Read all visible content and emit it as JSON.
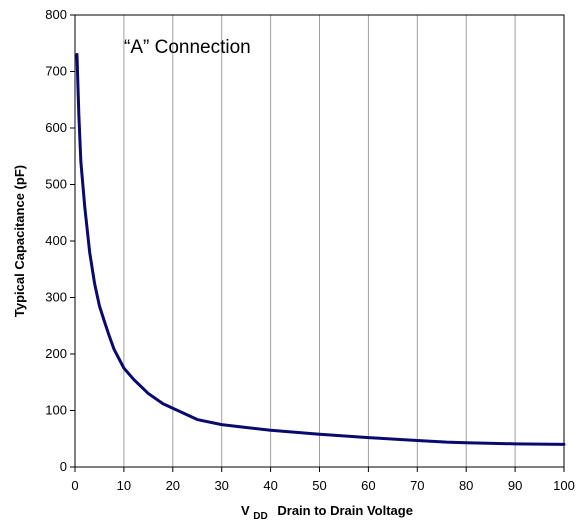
{
  "chart_data": {
    "type": "line",
    "title": "",
    "annotation": "“A” Connection",
    "xlabel": {
      "main": "V",
      "subscript": "DD",
      "rest": "Drain to Drain Voltage"
    },
    "ylabel": "Typical Capacitance (pF)",
    "xlim": [
      0,
      100
    ],
    "ylim": [
      0,
      800
    ],
    "x_ticks": [
      0,
      10,
      20,
      30,
      40,
      50,
      60,
      70,
      80,
      90,
      100
    ],
    "y_ticks": [
      0,
      100,
      200,
      300,
      400,
      500,
      600,
      700,
      800
    ],
    "grid": {
      "x": true,
      "y": false
    },
    "series_color": "#0a0a6e",
    "grid_color": "#a0a0a0",
    "series": [
      {
        "x": [
          0.4,
          0.8,
          1.2,
          2,
          3,
          4,
          5,
          6,
          7,
          8,
          10,
          12,
          15,
          18,
          20,
          25,
          30,
          35,
          40,
          50,
          60,
          70,
          76,
          80,
          90,
          100
        ],
        "y": [
          730,
          620,
          540,
          460,
          380,
          325,
          285,
          258,
          232,
          208,
          175,
          155,
          130,
          112,
          104,
          84,
          75,
          70,
          65,
          58,
          52,
          47,
          44,
          43,
          41,
          40
        ]
      }
    ]
  }
}
